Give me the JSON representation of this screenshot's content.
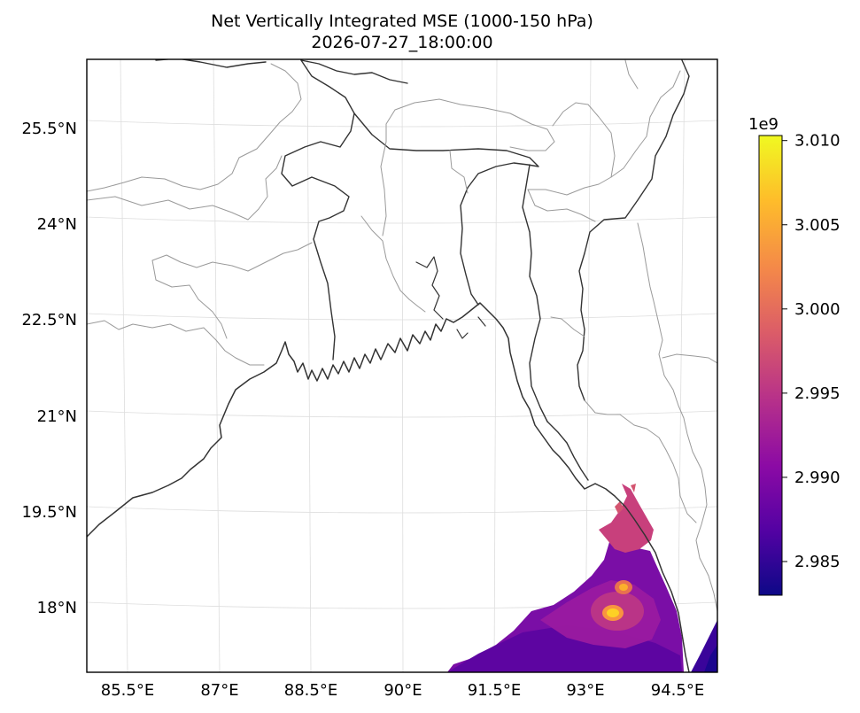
{
  "chart_data": {
    "type": "heatmap",
    "projection": "map",
    "title": "Net Vertically Integrated MSE (1000-150 hPa)",
    "subtitle": "2026-07-27_18:00:00",
    "x_ticks": [
      {
        "lon": 85.5,
        "label": "85.5°E"
      },
      {
        "lon": 87,
        "label": "87°E"
      },
      {
        "lon": 88.5,
        "label": "88.5°E"
      },
      {
        "lon": 90,
        "label": "90°E"
      },
      {
        "lon": 91.5,
        "label": "91.5°E"
      },
      {
        "lon": 93,
        "label": "93°E"
      },
      {
        "lon": 94.5,
        "label": "94.5°E"
      }
    ],
    "y_ticks": [
      {
        "lat": 18,
        "label": "18°N"
      },
      {
        "lat": 19.5,
        "label": "19.5°N"
      },
      {
        "lat": 21,
        "label": "21°N"
      },
      {
        "lat": 22.5,
        "label": "22.5°N"
      },
      {
        "lat": 24,
        "label": "24°N"
      },
      {
        "lat": 25.5,
        "label": "25.5°N"
      }
    ],
    "lon_range": [
      84.8,
      95.0
    ],
    "lat_range": [
      17.4,
      26.9
    ],
    "grid": true,
    "colormap": "plasma",
    "colorbar": {
      "exponent_label": "1e9",
      "range": [
        2.983,
        3.0103
      ],
      "ticks": [
        {
          "value": 2.985,
          "label": "2.985"
        },
        {
          "value": 2.99,
          "label": "2.990"
        },
        {
          "value": 2.995,
          "label": "2.995"
        },
        {
          "value": 3.0,
          "label": "3.000"
        },
        {
          "value": 3.005,
          "label": "3.005"
        },
        {
          "value": 3.01,
          "label": "3.010"
        }
      ],
      "stops": [
        "#0d0887",
        "#5302a3",
        "#8b0aa5",
        "#b83289",
        "#db5c68",
        "#f48849",
        "#febd2a",
        "#f0f921"
      ]
    },
    "field_region": "south-east (Bay of Bengal off Myanmar coast)",
    "field_peak": {
      "lon": 93.3,
      "lat": 17.9,
      "value": 3.008
    },
    "field_secondary_peak": {
      "lon": 93.5,
      "lat": 18.4,
      "value": 3.004
    },
    "field_background_value": 2.988
  }
}
